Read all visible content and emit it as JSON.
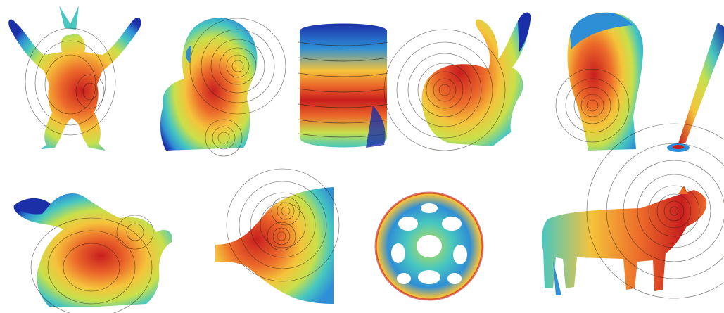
{
  "figure": {
    "background": "#ffffff",
    "colormap": [
      "#1b2fa8",
      "#2f8fd6",
      "#47c7c0",
      "#c8e04a",
      "#f5c33b",
      "#ec6a2a",
      "#c81e1e"
    ],
    "contour_line_color": "#2a1e14",
    "isoline_color_near_sources": "#ffffff"
  },
  "models": [
    {
      "name": "armadillo",
      "row": 1,
      "col": 1
    },
    {
      "name": "bust",
      "row": 1,
      "col": 2
    },
    {
      "name": "barrel",
      "row": 1,
      "col": 3
    },
    {
      "name": "bunny",
      "row": 1,
      "col": 4
    },
    {
      "name": "head",
      "row": 1,
      "col": 5
    },
    {
      "name": "rod",
      "row": 1,
      "col": 6
    },
    {
      "name": "dragon",
      "row": 2,
      "col": 1
    },
    {
      "name": "planar-patch",
      "row": 2,
      "col": 2
    },
    {
      "name": "lattice-sphere",
      "row": 2,
      "col": 3
    },
    {
      "name": "cow",
      "row": 2,
      "col": 4
    }
  ]
}
